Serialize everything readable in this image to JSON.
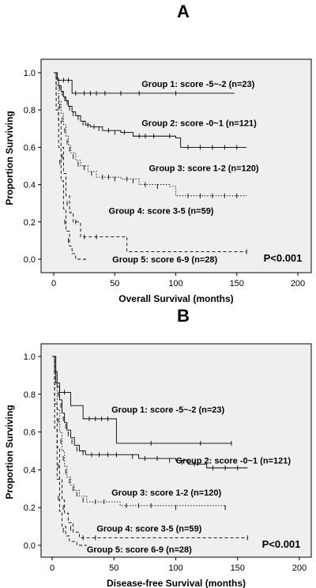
{
  "chart_data": [
    {
      "type": "line",
      "panel_label": "A",
      "xlabel": "Overall Survival (months)",
      "ylabel": "Proportion Surviving",
      "xlim": [
        0,
        200
      ],
      "ylim": [
        0,
        1.0
      ],
      "x_ticks": [
        0,
        50,
        100,
        150,
        200
      ],
      "y_ticks": [
        0.0,
        0.2,
        0.4,
        0.6,
        0.8,
        1.0
      ],
      "y_tick_labels": [
        "0.0",
        "0.2",
        "0.4",
        "0.6",
        "0.8",
        "1.0"
      ],
      "annotation": "P<0.001",
      "background": "#efefef",
      "series": [
        {
          "name": "Group 1: score -5~-2 (n=23)",
          "style": "solid",
          "label_at": [
            72,
            0.94
          ],
          "points": [
            [
              0,
              1.0
            ],
            [
              3,
              1.0
            ],
            [
              3,
              0.96
            ],
            [
              15,
              0.96
            ],
            [
              15,
              0.89
            ],
            [
              148,
              0.89
            ]
          ],
          "censors": [
            [
              8,
              0.96
            ],
            [
              12,
              0.96
            ],
            [
              18,
              0.89
            ],
            [
              25,
              0.89
            ],
            [
              30,
              0.89
            ],
            [
              35,
              0.89
            ],
            [
              42,
              0.89
            ],
            [
              55,
              0.89
            ],
            [
              70,
              0.89
            ],
            [
              100,
              0.89
            ]
          ]
        },
        {
          "name": "Group 2: score -0~1 (n=121)",
          "style": "solid",
          "label_at": [
            72,
            0.73
          ],
          "points": [
            [
              0,
              1.0
            ],
            [
              2,
              0.97
            ],
            [
              4,
              0.93
            ],
            [
              6,
              0.9
            ],
            [
              8,
              0.87
            ],
            [
              10,
              0.85
            ],
            [
              12,
              0.82
            ],
            [
              15,
              0.79
            ],
            [
              18,
              0.77
            ],
            [
              22,
              0.74
            ],
            [
              26,
              0.72
            ],
            [
              30,
              0.71
            ],
            [
              40,
              0.69
            ],
            [
              55,
              0.68
            ],
            [
              65,
              0.66
            ],
            [
              90,
              0.66
            ],
            [
              100,
              0.65
            ],
            [
              104,
              0.6
            ],
            [
              158,
              0.6
            ]
          ],
          "censors": [
            [
              5,
              0.92
            ],
            [
              7,
              0.89
            ],
            [
              9,
              0.86
            ],
            [
              11,
              0.84
            ],
            [
              13,
              0.81
            ],
            [
              16,
              0.78
            ],
            [
              20,
              0.76
            ],
            [
              24,
              0.73
            ],
            [
              28,
              0.72
            ],
            [
              33,
              0.71
            ],
            [
              37,
              0.7
            ],
            [
              45,
              0.69
            ],
            [
              50,
              0.68
            ],
            [
              58,
              0.68
            ],
            [
              70,
              0.66
            ],
            [
              75,
              0.66
            ],
            [
              82,
              0.66
            ],
            [
              95,
              0.66
            ],
            [
              110,
              0.6
            ],
            [
              120,
              0.6
            ],
            [
              130,
              0.6
            ],
            [
              140,
              0.6
            ],
            [
              150,
              0.6
            ]
          ]
        },
        {
          "name": "Group 3: score 1-2 (n=120)",
          "style": "dotted",
          "label_at": [
            78,
            0.49
          ],
          "points": [
            [
              0,
              1.0
            ],
            [
              2,
              0.93
            ],
            [
              4,
              0.85
            ],
            [
              6,
              0.78
            ],
            [
              8,
              0.72
            ],
            [
              10,
              0.66
            ],
            [
              12,
              0.61
            ],
            [
              14,
              0.57
            ],
            [
              18,
              0.53
            ],
            [
              22,
              0.5
            ],
            [
              28,
              0.47
            ],
            [
              35,
              0.44
            ],
            [
              55,
              0.43
            ],
            [
              70,
              0.4
            ],
            [
              95,
              0.39
            ],
            [
              100,
              0.34
            ],
            [
              158,
              0.34
            ]
          ],
          "censors": [
            [
              5,
              0.82
            ],
            [
              7,
              0.75
            ],
            [
              9,
              0.69
            ],
            [
              11,
              0.63
            ],
            [
              13,
              0.59
            ],
            [
              16,
              0.55
            ],
            [
              20,
              0.51
            ],
            [
              25,
              0.49
            ],
            [
              31,
              0.46
            ],
            [
              40,
              0.44
            ],
            [
              45,
              0.44
            ],
            [
              50,
              0.43
            ],
            [
              60,
              0.43
            ],
            [
              65,
              0.42
            ],
            [
              75,
              0.4
            ],
            [
              85,
              0.39
            ],
            [
              110,
              0.34
            ],
            [
              120,
              0.34
            ],
            [
              130,
              0.34
            ],
            [
              140,
              0.34
            ],
            [
              150,
              0.34
            ]
          ]
        },
        {
          "name": "Group 4: score 3-5 (n=59)",
          "style": "dashed",
          "label_at": [
            45,
            0.26
          ],
          "points": [
            [
              0,
              1.0
            ],
            [
              2,
              0.88
            ],
            [
              4,
              0.74
            ],
            [
              6,
              0.6
            ],
            [
              8,
              0.46
            ],
            [
              10,
              0.34
            ],
            [
              13,
              0.25
            ],
            [
              16,
              0.2
            ],
            [
              22,
              0.12
            ],
            [
              58,
              0.12
            ],
            [
              60,
              0.04
            ],
            [
              158,
              0.04
            ]
          ],
          "censors": [
            [
              7,
              0.55
            ],
            [
              11,
              0.3
            ],
            [
              18,
              0.2
            ],
            [
              25,
              0.12
            ],
            [
              35,
              0.12
            ],
            [
              158,
              0.04
            ]
          ]
        },
        {
          "name": "Group 5: score 6-9 (n=28)",
          "style": "dashed",
          "label_at": [
            48,
            0.0
          ],
          "points": [
            [
              0,
              1.0
            ],
            [
              2,
              0.8
            ],
            [
              4,
              0.6
            ],
            [
              6,
              0.42
            ],
            [
              8,
              0.27
            ],
            [
              10,
              0.15
            ],
            [
              13,
              0.07
            ],
            [
              15,
              0.03
            ],
            [
              18,
              0.0
            ],
            [
              28,
              0.0
            ]
          ],
          "censors": [
            [
              5,
              0.52
            ],
            [
              9,
              0.2
            ],
            [
              12,
              0.1
            ]
          ]
        }
      ]
    },
    {
      "type": "line",
      "panel_label": "B",
      "xlabel": "Disease-free Survival (months)",
      "ylabel": "Proportion Surviving",
      "xlim": [
        0,
        200
      ],
      "ylim": [
        0,
        1.0
      ],
      "x_ticks": [
        0,
        50,
        100,
        150,
        200
      ],
      "y_ticks": [
        0.0,
        0.2,
        0.4,
        0.6,
        0.8,
        1.0
      ],
      "y_tick_labels": [
        "0.0",
        "0.2",
        "0.4",
        "0.6",
        "0.8",
        "1.0"
      ],
      "annotation": "P<0.001",
      "background": "#efefef",
      "series": [
        {
          "name": "Group 1: score -5~-2 (n=23)",
          "style": "solid",
          "label_at": [
            48,
            0.72
          ],
          "points": [
            [
              0,
              1.0
            ],
            [
              3,
              1.0
            ],
            [
              3,
              0.86
            ],
            [
              6,
              0.86
            ],
            [
              6,
              0.81
            ],
            [
              15,
              0.81
            ],
            [
              15,
              0.74
            ],
            [
              25,
              0.74
            ],
            [
              25,
              0.67
            ],
            [
              52,
              0.67
            ],
            [
              52,
              0.54
            ],
            [
              145,
              0.54
            ]
          ],
          "censors": [
            [
              10,
              0.81
            ],
            [
              30,
              0.67
            ],
            [
              35,
              0.67
            ],
            [
              40,
              0.67
            ],
            [
              45,
              0.67
            ],
            [
              80,
              0.54
            ],
            [
              120,
              0.54
            ],
            [
              145,
              0.54
            ]
          ]
        },
        {
          "name": "Group 2: score -0~1 (n=121)",
          "style": "solid",
          "label_at": [
            100,
            0.45
          ],
          "points": [
            [
              0,
              1.0
            ],
            [
              2,
              0.92
            ],
            [
              4,
              0.84
            ],
            [
              6,
              0.77
            ],
            [
              8,
              0.7
            ],
            [
              10,
              0.65
            ],
            [
              12,
              0.61
            ],
            [
              15,
              0.57
            ],
            [
              18,
              0.53
            ],
            [
              22,
              0.5
            ],
            [
              27,
              0.48
            ],
            [
              60,
              0.48
            ],
            [
              70,
              0.46
            ],
            [
              100,
              0.45
            ],
            [
              110,
              0.43
            ],
            [
              125,
              0.41
            ],
            [
              158,
              0.41
            ]
          ],
          "censors": [
            [
              5,
              0.8
            ],
            [
              7,
              0.74
            ],
            [
              9,
              0.67
            ],
            [
              11,
              0.63
            ],
            [
              13,
              0.59
            ],
            [
              16,
              0.55
            ],
            [
              20,
              0.51
            ],
            [
              25,
              0.49
            ],
            [
              32,
              0.48
            ],
            [
              38,
              0.48
            ],
            [
              45,
              0.48
            ],
            [
              52,
              0.48
            ],
            [
              65,
              0.47
            ],
            [
              75,
              0.46
            ],
            [
              85,
              0.46
            ],
            [
              95,
              0.45
            ],
            [
              105,
              0.44
            ],
            [
              115,
              0.43
            ],
            [
              130,
              0.41
            ],
            [
              140,
              0.41
            ],
            [
              150,
              0.41
            ]
          ]
        },
        {
          "name": "Group 3: score 1-2 (n=120)",
          "style": "dotted",
          "label_at": [
            48,
            0.28
          ],
          "points": [
            [
              0,
              1.0
            ],
            [
              2,
              0.85
            ],
            [
              4,
              0.72
            ],
            [
              6,
              0.6
            ],
            [
              8,
              0.5
            ],
            [
              10,
              0.42
            ],
            [
              12,
              0.36
            ],
            [
              15,
              0.32
            ],
            [
              18,
              0.29
            ],
            [
              22,
              0.26
            ],
            [
              28,
              0.23
            ],
            [
              50,
              0.23
            ],
            [
              55,
              0.21
            ],
            [
              140,
              0.2
            ]
          ],
          "censors": [
            [
              5,
              0.66
            ],
            [
              7,
              0.55
            ],
            [
              9,
              0.46
            ],
            [
              11,
              0.39
            ],
            [
              14,
              0.34
            ],
            [
              17,
              0.3
            ],
            [
              20,
              0.27
            ],
            [
              25,
              0.24
            ],
            [
              35,
              0.23
            ],
            [
              42,
              0.23
            ],
            [
              60,
              0.21
            ],
            [
              70,
              0.21
            ],
            [
              80,
              0.21
            ],
            [
              100,
              0.2
            ],
            [
              140,
              0.2
            ]
          ]
        },
        {
          "name": "Group 4: score 3-5 (n=59)",
          "style": "dashed",
          "label_at": [
            36,
            0.09
          ],
          "points": [
            [
              0,
              1.0
            ],
            [
              2,
              0.75
            ],
            [
              4,
              0.52
            ],
            [
              6,
              0.35
            ],
            [
              8,
              0.24
            ],
            [
              10,
              0.17
            ],
            [
              13,
              0.12
            ],
            [
              17,
              0.07
            ],
            [
              22,
              0.04
            ],
            [
              158,
              0.04
            ]
          ],
          "censors": [
            [
              5,
              0.42
            ],
            [
              9,
              0.2
            ],
            [
              15,
              0.09
            ],
            [
              25,
              0.04
            ],
            [
              35,
              0.04
            ],
            [
              158,
              0.04
            ]
          ]
        },
        {
          "name": "Group 5: score 6-9 (n=28)",
          "style": "dashed",
          "label_at": [
            28,
            -0.02
          ],
          "points": [
            [
              0,
              1.0
            ],
            [
              2,
              0.62
            ],
            [
              4,
              0.35
            ],
            [
              6,
              0.18
            ],
            [
              8,
              0.1
            ],
            [
              11,
              0.05
            ],
            [
              14,
              0.02
            ],
            [
              20,
              0.0
            ],
            [
              28,
              0.0
            ]
          ],
          "censors": [
            [
              5,
              0.25
            ],
            [
              9,
              0.08
            ]
          ]
        }
      ]
    }
  ]
}
